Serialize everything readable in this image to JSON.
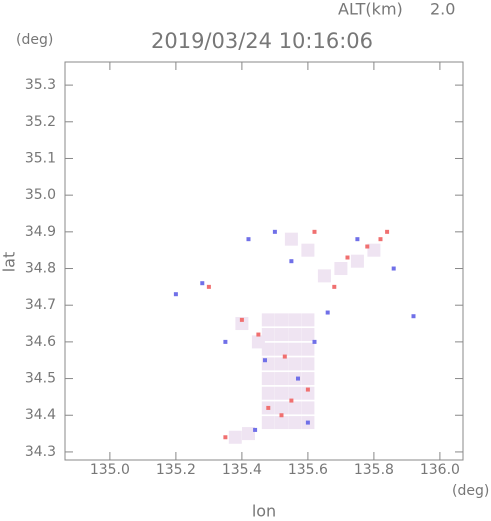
{
  "chart_data": {
    "type": "scatter",
    "title": "2019/03/24 10:16:06",
    "annotations": {
      "altitude_label": "ALT(km)",
      "altitude_value": "2.0",
      "y_unit": "(deg)",
      "x_unit": "(deg)"
    },
    "xlabel": "lon",
    "ylabel": "lat",
    "xlim": [
      134.864,
      136.07
    ],
    "ylim": [
      34.278,
      35.363
    ],
    "xticks": [
      {
        "value": 135.0,
        "label": "135.0"
      },
      135.2,
      135.4,
      135.6,
      135.8,
      {
        "value": 136.0,
        "label": "136.0"
      }
    ],
    "yticks": [
      35.3,
      35.2,
      35.1,
      {
        "value": 35.0,
        "label": "35.0"
      },
      34.9,
      34.8,
      34.7,
      34.6,
      34.5,
      34.4,
      34.3
    ],
    "series": [
      {
        "color": "#efe4f2",
        "x": [
          135.48,
          135.52,
          135.56,
          135.6,
          135.48,
          135.52,
          135.56,
          135.6,
          135.48,
          135.52,
          135.56,
          135.6,
          135.48,
          135.52,
          135.56,
          135.6,
          135.48,
          135.52,
          135.56,
          135.6,
          135.48,
          135.52,
          135.56,
          135.6,
          135.48,
          135.52,
          135.56,
          135.6,
          135.48,
          135.52,
          135.56,
          135.6,
          135.55,
          135.6,
          135.7,
          135.75,
          135.8,
          135.65,
          135.4,
          135.45,
          135.42,
          135.38
        ],
        "y": [
          34.38,
          34.38,
          34.38,
          34.38,
          34.42,
          34.42,
          34.42,
          34.42,
          34.46,
          34.46,
          34.46,
          34.46,
          34.5,
          34.5,
          34.5,
          34.5,
          34.54,
          34.54,
          34.54,
          34.54,
          34.58,
          34.58,
          34.58,
          34.58,
          34.62,
          34.62,
          34.62,
          34.62,
          34.66,
          34.66,
          34.66,
          34.66,
          34.88,
          34.85,
          34.8,
          34.82,
          34.85,
          34.78,
          34.65,
          34.6,
          34.35,
          34.34
        ]
      },
      {
        "color": "#f07070",
        "x": [
          135.35,
          135.3,
          135.53,
          135.45,
          135.55,
          135.6,
          135.78,
          135.82,
          135.72,
          135.62,
          135.48,
          135.52,
          135.68,
          135.4,
          135.84
        ],
        "y": [
          34.34,
          34.75,
          34.56,
          34.62,
          34.44,
          34.47,
          34.86,
          34.88,
          34.83,
          34.9,
          34.42,
          34.4,
          34.75,
          34.66,
          34.9
        ]
      },
      {
        "color": "#7070e8",
        "x": [
          135.92,
          135.28,
          135.5,
          135.55,
          135.6,
          135.57,
          135.47,
          135.44,
          135.75,
          135.66,
          135.86,
          135.2,
          135.42,
          135.35,
          135.62
        ],
        "y": [
          34.67,
          34.76,
          34.9,
          34.82,
          34.38,
          34.5,
          34.55,
          34.36,
          34.88,
          34.68,
          34.8,
          34.73,
          34.88,
          34.6,
          34.6
        ]
      }
    ]
  }
}
